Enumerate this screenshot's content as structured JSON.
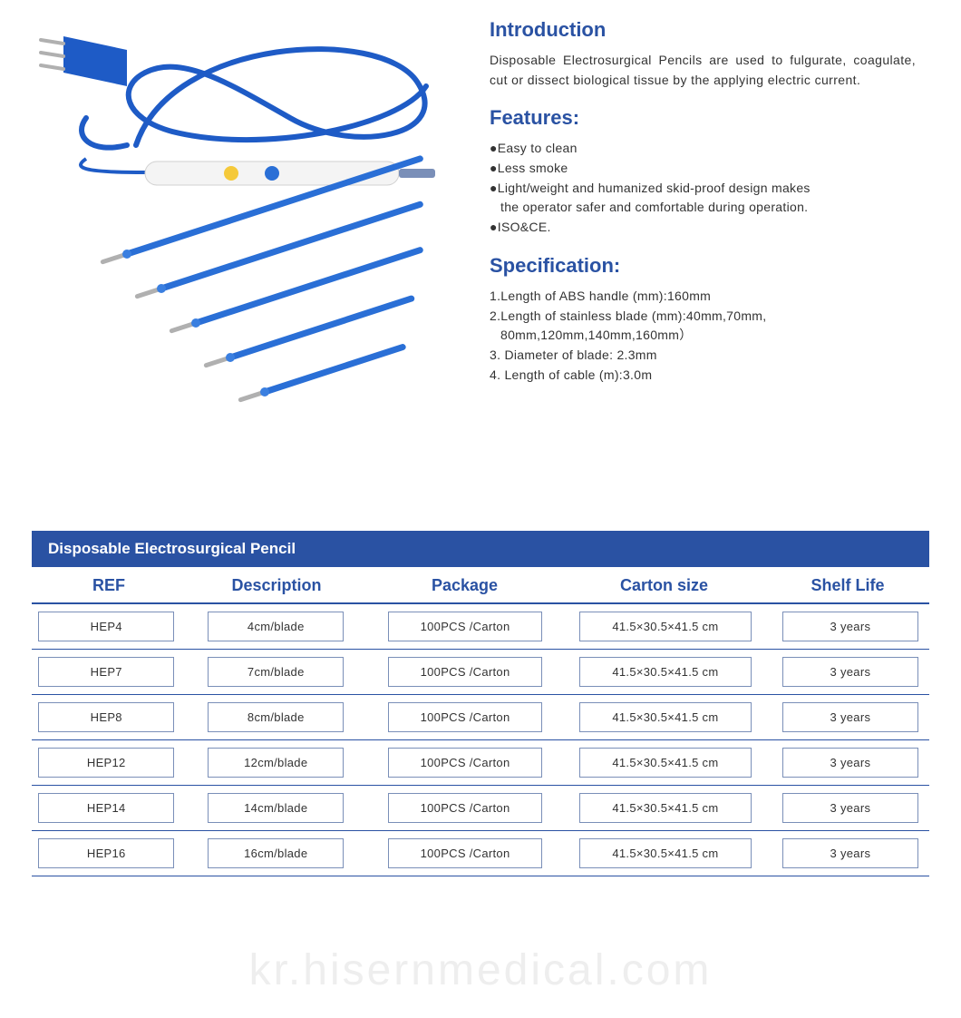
{
  "colors": {
    "primary": "#2a52a3",
    "text": "#333333",
    "cell_border": "#7a8fb8",
    "background": "#ffffff",
    "watermark": "#eeeeee",
    "cable_blue": "#1e5bc6",
    "pencil_body": "#f4f4f4",
    "button_yellow": "#f5c93a",
    "button_blue": "#2a6fd6",
    "electrode_blue": "#2a6fd6",
    "electrode_tip": "#b0b0b0"
  },
  "intro": {
    "title": "Introduction",
    "body": "Disposable Electrosurgical Pencils are used to fulgurate, coagulate, cut or dissect biological tissue by the applying electric current."
  },
  "features": {
    "title": "Features:",
    "items": [
      "●Easy to clean",
      "●Less smoke",
      "●Light/weight and humanized skid-proof design makes",
      "the operator safer and comfortable during operation.",
      "●ISO&CE."
    ],
    "indent_flags": [
      false,
      false,
      false,
      true,
      false
    ]
  },
  "spec": {
    "title": "Specification:",
    "items": [
      "1.Length of ABS handle (mm):160mm",
      "2.Length of stainless blade (mm):40mm,70mm,",
      "80mm,120mm,140mm,160mm）",
      "3. Diameter of blade: 2.3mm",
      "4. Length of cable (m):3.0m"
    ],
    "indent_flags": [
      false,
      false,
      true,
      false,
      false
    ]
  },
  "table": {
    "title": "Disposable Electrosurgical Pencil",
    "columns": [
      "REF",
      "Description",
      "Package",
      "Carton  size",
      "Shelf Life"
    ],
    "rows": [
      [
        "HEP4",
        "4cm/blade",
        "100PCS /Carton",
        "41.5×30.5×41.5 cm",
        "3 years"
      ],
      [
        "HEP7",
        "7cm/blade",
        "100PCS /Carton",
        "41.5×30.5×41.5 cm",
        "3 years"
      ],
      [
        "HEP8",
        "8cm/blade",
        "100PCS /Carton",
        "41.5×30.5×41.5 cm",
        "3 years"
      ],
      [
        "HEP12",
        "12cm/blade",
        "100PCS /Carton",
        "41.5×30.5×41.5 cm",
        "3 years"
      ],
      [
        "HEP14",
        "14cm/blade",
        "100PCS /Carton",
        "41.5×30.5×41.5 cm",
        "3 years"
      ],
      [
        "HEP16",
        "16cm/blade",
        "100PCS /Carton",
        "41.5×30.5×41.5 cm",
        "3 years"
      ]
    ]
  },
  "watermark": "kr.hisernmedical.com",
  "product_image": {
    "type": "infographic",
    "electrodes": {
      "count": 5,
      "lengths_rel": [
        340,
        300,
        260,
        210,
        160
      ],
      "shaft_color": "#2a6fd6",
      "tip_color": "#b0b0b0",
      "angle_deg": -18
    },
    "pencil": {
      "body_color": "#f4f4f4",
      "button1_color": "#f5c93a",
      "button2_color": "#2a6fd6",
      "tip_color": "#7a8fb8"
    },
    "cable_color": "#1e5bc6",
    "plug_color": "#1e5bc6"
  }
}
